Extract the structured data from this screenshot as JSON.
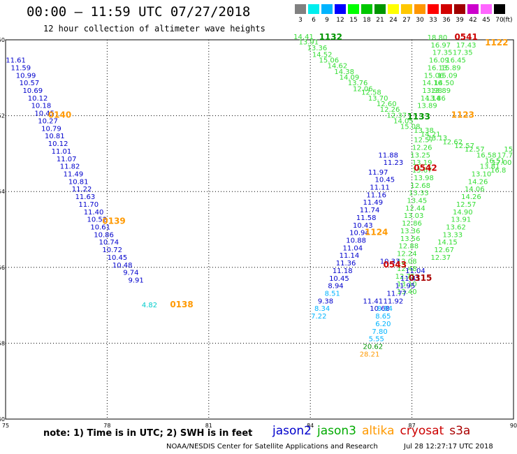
{
  "header": {
    "title": "00:00 – 11:59 UTC 07/27/2018",
    "subtitle": "12 hour collection of altimeter wave heights"
  },
  "color_scale": {
    "labels": [
      "3",
      "6",
      "9",
      "12",
      "15",
      "18",
      "21",
      "24",
      "27",
      "30",
      "33",
      "36",
      "39",
      "42",
      "45",
      "70"
    ],
    "colors": [
      "#808080",
      "#00eeee",
      "#00b4ff",
      "#0000ff",
      "#00ff00",
      "#00c800",
      "#009600",
      "#ffff00",
      "#ffc800",
      "#ff9600",
      "#ff0000",
      "#d20000",
      "#a00000",
      "#cc00cc",
      "#ff66ff",
      "#000000"
    ],
    "unit": "(ft)"
  },
  "footer": {
    "note": "note: 1) Time is in UTC; 2) SWH is in feet",
    "satellites": [
      {
        "name": "jason2",
        "color": "#0000cc"
      },
      {
        "name": "jason3",
        "color": "#00aa00"
      },
      {
        "name": "altika",
        "color": "#ff9900"
      },
      {
        "name": "cryosat",
        "color": "#cc0000"
      },
      {
        "name": "s3a",
        "color": "#aa0000"
      }
    ],
    "credit": "NOAA/NESDIS Center for Satellite Applications and Research",
    "timestamp": "Jul 28 12:27:17 UTC 2018"
  },
  "chart_data": {
    "type": "scatter",
    "xlim": [
      75,
      90
    ],
    "ylim": [
      -60,
      -50
    ],
    "xticks": [
      75,
      78,
      81,
      84,
      87,
      90
    ],
    "yticks": [
      -50,
      -52,
      -54,
      -56,
      -58,
      -60
    ],
    "grid": true,
    "labels": [
      {
        "x": 75.3,
        "y": -50.6,
        "t": "11.61",
        "c": "#0000cc"
      },
      {
        "x": 75.45,
        "y": -50.8,
        "t": "11.59",
        "c": "#0000cc"
      },
      {
        "x": 75.6,
        "y": -51.0,
        "t": "10.99",
        "c": "#0000cc"
      },
      {
        "x": 75.7,
        "y": -51.2,
        "t": "10.57",
        "c": "#0000cc"
      },
      {
        "x": 75.8,
        "y": -51.4,
        "t": "10.69",
        "c": "#0000cc"
      },
      {
        "x": 75.95,
        "y": -51.6,
        "t": "10.12",
        "c": "#0000cc"
      },
      {
        "x": 76.05,
        "y": -51.8,
        "t": "10.18",
        "c": "#0000cc"
      },
      {
        "x": 76.15,
        "y": -52.0,
        "t": "10.45",
        "c": "#0000cc"
      },
      {
        "x": 76.25,
        "y": -52.2,
        "t": "10.27",
        "c": "#0000cc"
      },
      {
        "x": 76.35,
        "y": -52.4,
        "t": "10.79",
        "c": "#0000cc"
      },
      {
        "x": 76.45,
        "y": -52.6,
        "t": "10.81",
        "c": "#0000cc"
      },
      {
        "x": 76.55,
        "y": -52.8,
        "t": "10.12",
        "c": "#0000cc"
      },
      {
        "x": 76.65,
        "y": -53.0,
        "t": "11.01",
        "c": "#0000cc"
      },
      {
        "x": 76.8,
        "y": -53.2,
        "t": "11.07",
        "c": "#0000cc"
      },
      {
        "x": 76.9,
        "y": -53.4,
        "t": "11.82",
        "c": "#0000cc"
      },
      {
        "x": 77.0,
        "y": -53.6,
        "t": "11.49",
        "c": "#0000cc"
      },
      {
        "x": 77.15,
        "y": -53.8,
        "t": "10.81",
        "c": "#0000cc"
      },
      {
        "x": 77.25,
        "y": -54.0,
        "t": "11.22",
        "c": "#0000cc"
      },
      {
        "x": 77.35,
        "y": -54.2,
        "t": "11.63",
        "c": "#0000cc"
      },
      {
        "x": 77.45,
        "y": -54.4,
        "t": "11.70",
        "c": "#0000cc"
      },
      {
        "x": 77.6,
        "y": -54.6,
        "t": "11.40",
        "c": "#0000cc"
      },
      {
        "x": 77.7,
        "y": -54.8,
        "t": "10.52",
        "c": "#0000cc"
      },
      {
        "x": 77.8,
        "y": -55.0,
        "t": "10.61",
        "c": "#0000cc"
      },
      {
        "x": 77.9,
        "y": -55.2,
        "t": "10.86",
        "c": "#0000cc"
      },
      {
        "x": 78.05,
        "y": -55.4,
        "t": "10.74",
        "c": "#0000cc"
      },
      {
        "x": 78.15,
        "y": -55.6,
        "t": "10.72",
        "c": "#0000cc"
      },
      {
        "x": 78.3,
        "y": -55.8,
        "t": "10.45",
        "c": "#0000cc"
      },
      {
        "x": 78.45,
        "y": -56.0,
        "t": "10.48",
        "c": "#0000cc"
      },
      {
        "x": 78.7,
        "y": -56.2,
        "t": "9.74",
        "c": "#0000cc"
      },
      {
        "x": 78.85,
        "y": -56.4,
        "t": "9.91",
        "c": "#0000cc"
      },
      {
        "x": 79.25,
        "y": -57.05,
        "t": "4.82",
        "c": "#00cccc"
      },
      {
        "x": 83.8,
        "y": -49.98,
        "t": "14.41",
        "c": "#33dd33"
      },
      {
        "x": 83.95,
        "y": -50.12,
        "t": "13.91",
        "c": "#33dd33"
      },
      {
        "x": 84.2,
        "y": -50.28,
        "t": "13.36",
        "c": "#33dd33"
      },
      {
        "x": 84.35,
        "y": -50.45,
        "t": "14.52",
        "c": "#33dd33"
      },
      {
        "x": 84.55,
        "y": -50.6,
        "t": "15.06",
        "c": "#33dd33"
      },
      {
        "x": 84.8,
        "y": -50.75,
        "t": "14.62",
        "c": "#33dd33"
      },
      {
        "x": 85.0,
        "y": -50.9,
        "t": "14.38",
        "c": "#33dd33"
      },
      {
        "x": 85.15,
        "y": -51.05,
        "t": "14.09",
        "c": "#33dd33"
      },
      {
        "x": 85.4,
        "y": -51.2,
        "t": "13.76",
        "c": "#33dd33"
      },
      {
        "x": 85.55,
        "y": -51.35,
        "t": "12.06",
        "c": "#33dd33"
      },
      {
        "x": 85.8,
        "y": -51.45,
        "t": "12.58",
        "c": "#33dd33"
      },
      {
        "x": 86.0,
        "y": -51.6,
        "t": "13.70",
        "c": "#33dd33"
      },
      {
        "x": 86.25,
        "y": -51.75,
        "t": "12.60",
        "c": "#33dd33"
      },
      {
        "x": 86.35,
        "y": -51.9,
        "t": "12.26",
        "c": "#33dd33"
      },
      {
        "x": 86.55,
        "y": -52.05,
        "t": "12.37",
        "c": "#33dd33"
      },
      {
        "x": 86.75,
        "y": -52.2,
        "t": "14.05",
        "c": "#33dd33"
      },
      {
        "x": 86.95,
        "y": -52.35,
        "t": "15.08",
        "c": "#33dd33"
      },
      {
        "x": 87.35,
        "y": -52.45,
        "t": "13.38",
        "c": "#33dd33"
      },
      {
        "x": 87.55,
        "y": -52.55,
        "t": "14.21",
        "c": "#33dd33"
      },
      {
        "x": 87.75,
        "y": -52.65,
        "t": "13.13",
        "c": "#33dd33"
      },
      {
        "x": 88.2,
        "y": -52.75,
        "t": "12.62",
        "c": "#33dd33"
      },
      {
        "x": 88.55,
        "y": -52.85,
        "t": "12.57",
        "c": "#33dd33"
      },
      {
        "x": 88.85,
        "y": -52.95,
        "t": "12.57",
        "c": "#33dd33"
      },
      {
        "x": 89.2,
        "y": -53.1,
        "t": "16.58",
        "c": "#33dd33"
      },
      {
        "x": 89.45,
        "y": -53.25,
        "t": "16.51",
        "c": "#33dd33"
      },
      {
        "x": 87.75,
        "y": -50.0,
        "t": "18.80",
        "c": "#33dd33"
      },
      {
        "x": 87.85,
        "y": -50.2,
        "t": "16.97",
        "c": "#33dd33"
      },
      {
        "x": 87.9,
        "y": -50.4,
        "t": "17.35",
        "c": "#33dd33"
      },
      {
        "x": 87.8,
        "y": -50.6,
        "t": "16.09",
        "c": "#33dd33"
      },
      {
        "x": 87.75,
        "y": -50.8,
        "t": "16.13",
        "c": "#33dd33"
      },
      {
        "x": 87.65,
        "y": -51.0,
        "t": "15.06",
        "c": "#33dd33"
      },
      {
        "x": 87.6,
        "y": -51.2,
        "t": "14.16",
        "c": "#33dd33"
      },
      {
        "x": 87.6,
        "y": -51.4,
        "t": "13.98",
        "c": "#33dd33"
      },
      {
        "x": 87.55,
        "y": -51.6,
        "t": "14.14",
        "c": "#33dd33"
      },
      {
        "x": 87.45,
        "y": -51.8,
        "t": "13.89",
        "c": "#33dd33"
      },
      {
        "x": 88.6,
        "y": -50.2,
        "t": "17.43",
        "c": "#33dd33"
      },
      {
        "x": 88.5,
        "y": -50.4,
        "t": "17.35",
        "c": "#33dd33"
      },
      {
        "x": 88.3,
        "y": -50.6,
        "t": "16.45",
        "c": "#33dd33"
      },
      {
        "x": 88.15,
        "y": -50.8,
        "t": "15.89",
        "c": "#33dd33"
      },
      {
        "x": 88.05,
        "y": -51.0,
        "t": "15.09",
        "c": "#33dd33"
      },
      {
        "x": 87.95,
        "y": -51.2,
        "t": "14.50",
        "c": "#33dd33"
      },
      {
        "x": 87.85,
        "y": -51.4,
        "t": "13.89",
        "c": "#33dd33"
      },
      {
        "x": 87.7,
        "y": -51.6,
        "t": "13.86",
        "c": "#33dd33"
      },
      {
        "x": 87.35,
        "y": -52.7,
        "t": "12.57",
        "c": "#33dd33"
      },
      {
        "x": 87.3,
        "y": -52.9,
        "t": "12.26",
        "c": "#33dd33"
      },
      {
        "x": 87.25,
        "y": -53.1,
        "t": "13.25",
        "c": "#33dd33"
      },
      {
        "x": 87.3,
        "y": -53.3,
        "t": "13.19",
        "c": "#33dd33"
      },
      {
        "x": 87.3,
        "y": -53.5,
        "t": "13.67",
        "c": "#33dd33"
      },
      {
        "x": 87.35,
        "y": -53.7,
        "t": "13.98",
        "c": "#33dd33"
      },
      {
        "x": 87.25,
        "y": -53.9,
        "t": "12.68",
        "c": "#33dd33"
      },
      {
        "x": 87.2,
        "y": -54.1,
        "t": "13.33",
        "c": "#33dd33"
      },
      {
        "x": 87.15,
        "y": -54.3,
        "t": "13.45",
        "c": "#33dd33"
      },
      {
        "x": 87.1,
        "y": -54.5,
        "t": "12.44",
        "c": "#33dd33"
      },
      {
        "x": 87.05,
        "y": -54.7,
        "t": "13.03",
        "c": "#33dd33"
      },
      {
        "x": 87.0,
        "y": -54.9,
        "t": "12.86",
        "c": "#33dd33"
      },
      {
        "x": 86.95,
        "y": -55.1,
        "t": "13.36",
        "c": "#33dd33"
      },
      {
        "x": 86.95,
        "y": -55.3,
        "t": "13.56",
        "c": "#33dd33"
      },
      {
        "x": 86.9,
        "y": -55.5,
        "t": "12.88",
        "c": "#33dd33"
      },
      {
        "x": 86.85,
        "y": -55.7,
        "t": "12.24",
        "c": "#33dd33"
      },
      {
        "x": 86.85,
        "y": -55.9,
        "t": "12.08",
        "c": "#33dd33"
      },
      {
        "x": 86.85,
        "y": -56.1,
        "t": "12.48",
        "c": "#33dd33"
      },
      {
        "x": 86.8,
        "y": -56.3,
        "t": "12.75",
        "c": "#33dd33"
      },
      {
        "x": 86.85,
        "y": -56.5,
        "t": "13.10",
        "c": "#33dd33"
      },
      {
        "x": 86.85,
        "y": -56.7,
        "t": "13.40",
        "c": "#33dd33"
      },
      {
        "x": 89.3,
        "y": -53.4,
        "t": "13.81",
        "c": "#33dd33"
      },
      {
        "x": 89.05,
        "y": -53.6,
        "t": "13.10",
        "c": "#33dd33"
      },
      {
        "x": 88.95,
        "y": -53.8,
        "t": "14.26",
        "c": "#33dd33"
      },
      {
        "x": 88.85,
        "y": -54.0,
        "t": "14.06",
        "c": "#33dd33"
      },
      {
        "x": 88.75,
        "y": -54.2,
        "t": "14.26",
        "c": "#33dd33"
      },
      {
        "x": 88.6,
        "y": -54.4,
        "t": "12.57",
        "c": "#33dd33"
      },
      {
        "x": 88.5,
        "y": -54.6,
        "t": "14.90",
        "c": "#33dd33"
      },
      {
        "x": 88.45,
        "y": -54.8,
        "t": "13.91",
        "c": "#33dd33"
      },
      {
        "x": 88.3,
        "y": -55.0,
        "t": "13.62",
        "c": "#33dd33"
      },
      {
        "x": 88.2,
        "y": -55.2,
        "t": "13.33",
        "c": "#33dd33"
      },
      {
        "x": 88.05,
        "y": -55.4,
        "t": "14.15",
        "c": "#33dd33"
      },
      {
        "x": 87.95,
        "y": -55.6,
        "t": "12.67",
        "c": "#33dd33"
      },
      {
        "x": 87.85,
        "y": -55.8,
        "t": "12.37",
        "c": "#33dd33"
      },
      {
        "x": 89.85,
        "y": -52.95,
        "t": "15",
        "c": "#33dd33"
      },
      {
        "x": 89.75,
        "y": -53.1,
        "t": "17.7",
        "c": "#33dd33"
      },
      {
        "x": 89.65,
        "y": -53.3,
        "t": "17.00",
        "c": "#33dd33"
      },
      {
        "x": 89.55,
        "y": -53.5,
        "t": "16.8",
        "c": "#33dd33"
      },
      {
        "x": 86.3,
        "y": -53.1,
        "t": "11.88",
        "c": "#0000cc"
      },
      {
        "x": 86.45,
        "y": -53.3,
        "t": "11.23",
        "c": "#0000cc"
      },
      {
        "x": 86.0,
        "y": -53.55,
        "t": "11.97",
        "c": "#0000cc"
      },
      {
        "x": 86.2,
        "y": -53.75,
        "t": "10.45",
        "c": "#0000cc"
      },
      {
        "x": 86.05,
        "y": -53.95,
        "t": "11.11",
        "c": "#0000cc"
      },
      {
        "x": 85.95,
        "y": -54.15,
        "t": "11.16",
        "c": "#0000cc"
      },
      {
        "x": 85.85,
        "y": -54.35,
        "t": "11.49",
        "c": "#0000cc"
      },
      {
        "x": 85.75,
        "y": -54.55,
        "t": "11.74",
        "c": "#0000cc"
      },
      {
        "x": 85.65,
        "y": -54.75,
        "t": "11.58",
        "c": "#0000cc"
      },
      {
        "x": 85.55,
        "y": -54.95,
        "t": "10.43",
        "c": "#0000cc"
      },
      {
        "x": 85.45,
        "y": -55.15,
        "t": "10.94",
        "c": "#0000cc"
      },
      {
        "x": 85.35,
        "y": -55.35,
        "t": "10.88",
        "c": "#0000cc"
      },
      {
        "x": 85.25,
        "y": -55.55,
        "t": "11.04",
        "c": "#0000cc"
      },
      {
        "x": 85.15,
        "y": -55.75,
        "t": "11.14",
        "c": "#0000cc"
      },
      {
        "x": 85.05,
        "y": -55.95,
        "t": "11.36",
        "c": "#0000cc"
      },
      {
        "x": 84.95,
        "y": -56.15,
        "t": "11.18",
        "c": "#0000cc"
      },
      {
        "x": 84.85,
        "y": -56.35,
        "t": "10.45",
        "c": "#0000cc"
      },
      {
        "x": 84.75,
        "y": -56.55,
        "t": "8.94",
        "c": "#0000cc"
      },
      {
        "x": 84.65,
        "y": -56.75,
        "t": "8.51",
        "c": "#00b4ff"
      },
      {
        "x": 84.45,
        "y": -56.95,
        "t": "9.38",
        "c": "#0000cc"
      },
      {
        "x": 84.35,
        "y": -57.15,
        "t": "8.34",
        "c": "#00b4ff"
      },
      {
        "x": 84.25,
        "y": -57.35,
        "t": "7.22",
        "c": "#00b4ff"
      },
      {
        "x": 87.1,
        "y": -56.15,
        "t": "11.04",
        "c": "#0000cc"
      },
      {
        "x": 86.95,
        "y": -56.35,
        "t": "11.41",
        "c": "#0000cc"
      },
      {
        "x": 86.8,
        "y": -56.55,
        "t": "11.95",
        "c": "#0000cc"
      },
      {
        "x": 86.55,
        "y": -56.75,
        "t": "11.77",
        "c": "#0000cc"
      },
      {
        "x": 86.45,
        "y": -56.95,
        "t": "11.92",
        "c": "#0000cc"
      },
      {
        "x": 85.85,
        "y": -56.95,
        "t": "11.41",
        "c": "#0000cc"
      },
      {
        "x": 86.05,
        "y": -57.15,
        "t": "10.68",
        "c": "#0000cc"
      },
      {
        "x": 86.2,
        "y": -57.15,
        "t": "8.84",
        "c": "#00b4ff"
      },
      {
        "x": 86.15,
        "y": -57.35,
        "t": "8.65",
        "c": "#00b4ff"
      },
      {
        "x": 86.15,
        "y": -57.55,
        "t": "6.20",
        "c": "#00b4ff"
      },
      {
        "x": 86.05,
        "y": -57.75,
        "t": "7.80",
        "c": "#00b4ff"
      },
      {
        "x": 85.95,
        "y": -57.95,
        "t": "5.55",
        "c": "#00b4ff"
      },
      {
        "x": 85.85,
        "y": -58.15,
        "t": "20.62",
        "c": "#009600"
      },
      {
        "x": 85.75,
        "y": -58.35,
        "t": "28.21",
        "c": "#ff9900"
      },
      {
        "x": 86.35,
        "y": -55.9,
        "t": "10.33",
        "c": "#0000cc"
      }
    ],
    "passes": [
      {
        "x": 76.6,
        "y": -52.05,
        "t": "0140",
        "c": "#ff9900"
      },
      {
        "x": 78.2,
        "y": -54.85,
        "t": "0139",
        "c": "#ff9900"
      },
      {
        "x": 80.2,
        "y": -57.05,
        "t": "0138",
        "c": "#ff9900"
      },
      {
        "x": 84.6,
        "y": -50.0,
        "t": "1132",
        "c": "#009600"
      },
      {
        "x": 88.6,
        "y": -50.0,
        "t": "0541",
        "c": "#cc0000"
      },
      {
        "x": 89.5,
        "y": -50.15,
        "t": "1122",
        "c": "#ff9900"
      },
      {
        "x": 88.5,
        "y": -52.05,
        "t": "1123",
        "c": "#ff9900"
      },
      {
        "x": 87.2,
        "y": -52.1,
        "t": "1133",
        "c": "#009600"
      },
      {
        "x": 87.4,
        "y": -53.45,
        "t": "0542",
        "c": "#cc0000"
      },
      {
        "x": 85.95,
        "y": -55.15,
        "t": "1124",
        "c": "#ff9900"
      },
      {
        "x": 86.5,
        "y": -56.0,
        "t": "0543",
        "c": "#cc0000"
      },
      {
        "x": 87.25,
        "y": -56.35,
        "t": "0315",
        "c": "#aa0000"
      }
    ]
  }
}
